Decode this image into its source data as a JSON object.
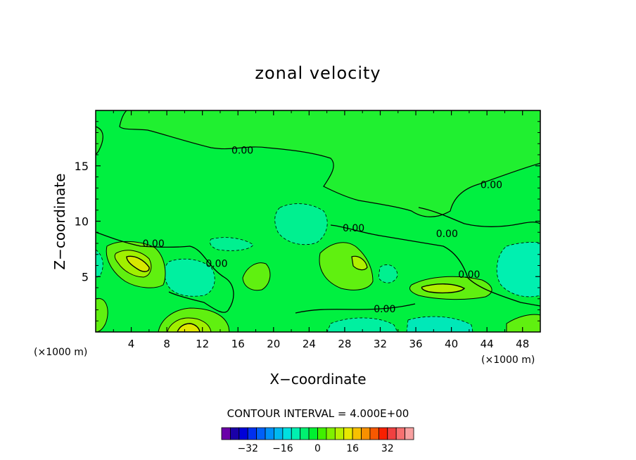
{
  "chart_data": {
    "type": "heatmap",
    "title": "zonal velocity",
    "xlabel": "X−coordinate",
    "ylabel": "Z−coordinate",
    "x_unit_label": "(×1000 m)",
    "x_unit_label_right": "(×1000 m)",
    "xlim": [
      0,
      50
    ],
    "ylim": [
      0,
      20
    ],
    "x_ticks": [
      4,
      8,
      12,
      16,
      20,
      24,
      28,
      32,
      36,
      40,
      44,
      48
    ],
    "y_ticks": [
      5,
      10,
      15
    ],
    "contour_interval_text": "CONTOUR INTERVAL = 4.000E+00",
    "contour_labels": [
      {
        "x": 16.5,
        "y": 16.4,
        "text": "0.00"
      },
      {
        "x": 44.5,
        "y": 13.3,
        "text": "0.00"
      },
      {
        "x": 6.5,
        "y": 8.0,
        "text": "0.00"
      },
      {
        "x": 29.0,
        "y": 9.4,
        "text": "0.00"
      },
      {
        "x": 39.5,
        "y": 8.9,
        "text": "0.00"
      },
      {
        "x": 42.0,
        "y": 5.2,
        "text": "0.00"
      },
      {
        "x": 32.5,
        "y": 2.1,
        "text": "0.00"
      },
      {
        "x": 13.6,
        "y": 6.2,
        "text": "0.00"
      }
    ],
    "colorbar": {
      "colors": [
        "#6a00a8",
        "#1a00a8",
        "#0000d8",
        "#0030f0",
        "#0060f8",
        "#0090f8",
        "#00b8f0",
        "#00e0e0",
        "#00f0b0",
        "#00f070",
        "#00f030",
        "#40f000",
        "#80f000",
        "#b8f000",
        "#e8e800",
        "#f8c000",
        "#f89000",
        "#f85800",
        "#f82000",
        "#f04040",
        "#f87070",
        "#f8a0a0"
      ],
      "tick_labels": [
        "−32",
        "−16",
        "0",
        "16",
        "32"
      ],
      "tick_values": [
        -32,
        -16,
        0,
        16,
        32
      ],
      "vmin": -44,
      "vmax": 44
    },
    "grid": false,
    "legend": "bottom"
  }
}
